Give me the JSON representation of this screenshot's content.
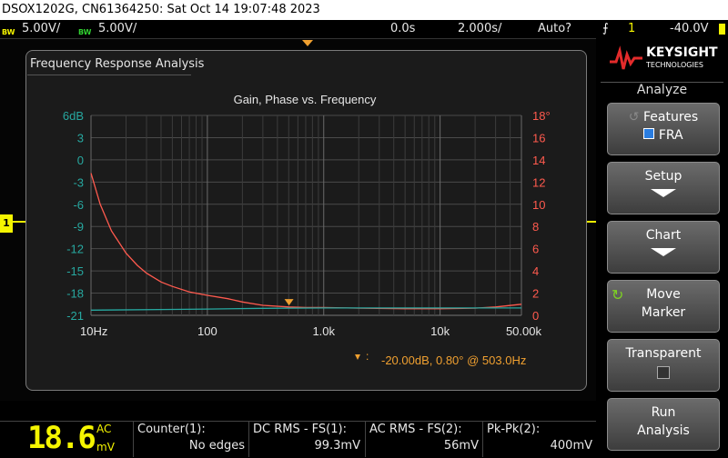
{
  "title_bar": "DSOX1202G, CN61364250: Sat Oct 14 19:07:48 2023",
  "status": {
    "ch1_bw": "BW",
    "ch1_scale": "5.00V/",
    "ch2_bw": "BW",
    "ch2_scale": "5.00V/",
    "time_offset": "0.0s",
    "timebase": "2.000s/",
    "trigger_mode": "Auto?",
    "trigger_channel": "1",
    "trigger_level": "-40.0V"
  },
  "fra": {
    "window_title": "Frequency Response Analysis",
    "marker_readout": "-20.00dB, 0.80° @ 503.0Hz"
  },
  "chart_data": {
    "type": "line",
    "title": "Gain, Phase vs. Frequency",
    "x_scale": "log",
    "x_ticks": [
      "10Hz",
      "100",
      "1.0k",
      "10k",
      "50.00k"
    ],
    "y_left_ticks": [
      "6dB",
      "3",
      "0",
      "-3",
      "-6",
      "-9",
      "-12",
      "-15",
      "-18",
      "-21"
    ],
    "y_right_ticks": [
      "18°",
      "16",
      "14",
      "12",
      "10",
      "8",
      "6",
      "4",
      "2",
      "0"
    ],
    "y_left_range": [
      -21,
      6
    ],
    "y_right_range": [
      0,
      18
    ],
    "series": [
      {
        "color": "#ff5a4e",
        "axis": "right",
        "points": [
          [
            10,
            12.8
          ],
          [
            12,
            10
          ],
          [
            15,
            7.6
          ],
          [
            20,
            5.6
          ],
          [
            25,
            4.5
          ],
          [
            30,
            3.8
          ],
          [
            40,
            3.0
          ],
          [
            50,
            2.6
          ],
          [
            70,
            2.1
          ],
          [
            100,
            1.8
          ],
          [
            150,
            1.5
          ],
          [
            200,
            1.2
          ],
          [
            300,
            0.9
          ],
          [
            500,
            0.75
          ],
          [
            700,
            0.7
          ],
          [
            1000,
            0.7
          ],
          [
            2000,
            0.65
          ],
          [
            5000,
            0.6
          ],
          [
            10000,
            0.6
          ],
          [
            20000,
            0.65
          ],
          [
            30000,
            0.75
          ],
          [
            50000,
            1.0
          ]
        ]
      },
      {
        "color": "#27a8a0",
        "axis": "left",
        "points": [
          [
            10,
            -20.3
          ],
          [
            50,
            -20.2
          ],
          [
            100,
            -20.15
          ],
          [
            300,
            -20.05
          ],
          [
            1000,
            -20.0
          ],
          [
            10000,
            -20.0
          ],
          [
            50000,
            -20.0
          ]
        ]
      }
    ],
    "marker_x": 503,
    "grid": true
  },
  "softkeys": {
    "brand": "KEYSIGHT",
    "brand_sub": "TECHNOLOGIES",
    "menu_title": "Analyze",
    "features_label": "Features",
    "features_value": "FRA",
    "setup_label": "Setup",
    "chart_label": "Chart",
    "move_marker_l1": "Move",
    "move_marker_l2": "Marker",
    "transparent_label": "Transparent",
    "run_l1": "Run",
    "run_l2": "Analysis"
  },
  "bottom": {
    "dvm_value": "18.6",
    "dvm_mode": "AC",
    "dvm_unit": "mV",
    "counter_label": "Counter(1):",
    "counter_value": "No edges",
    "dcrms_label": "DC RMS - FS(1):",
    "dcrms_value": "99.3mV",
    "acrms_label": "AC RMS - FS(2):",
    "acrms_value": "56mV",
    "pkpk_label": "Pk-Pk(2):",
    "pkpk_value": "400mV"
  },
  "colors": {
    "ch1": "#f5f500",
    "ch2": "#30d030",
    "phase": "#ff5a4e",
    "gain": "#27a8a0",
    "marker": "#f0a030"
  }
}
